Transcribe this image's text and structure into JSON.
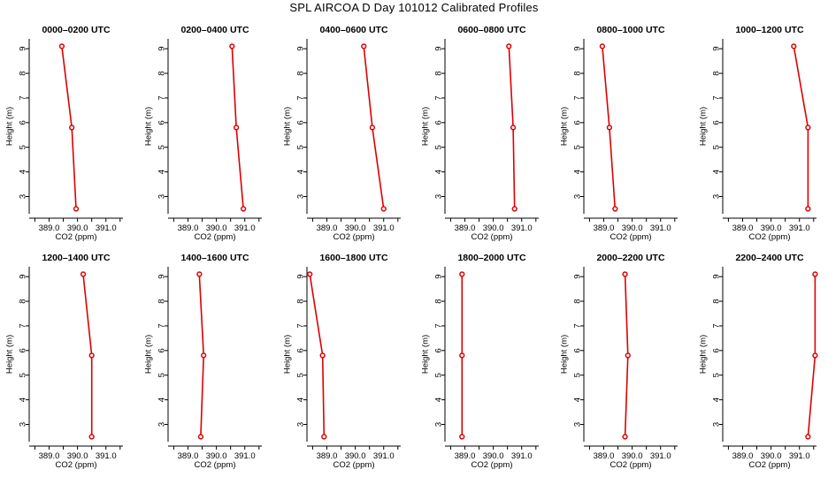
{
  "figure": {
    "title": "SPL AIRCOA D  Day 101012  Calibrated Profiles"
  },
  "style": {
    "line_color": "#dd0000",
    "axis_color": "#000000"
  },
  "chart_data": [
    {
      "type": "line",
      "title": "0000–0200 UTC",
      "xlabel": "CO2 (ppm)",
      "ylabel": "Height (m)",
      "xlim": [
        388.3,
        391.6
      ],
      "ylim": [
        2.3,
        9.4
      ],
      "xticks": [
        "389.0",
        "390.0",
        "391.0"
      ],
      "yticks": [
        "3",
        "4",
        "5",
        "6",
        "7",
        "8",
        "9"
      ],
      "series": [
        {
          "x": [
            389.45,
            389.8,
            389.95
          ],
          "y": [
            9.1,
            5.8,
            2.5
          ]
        }
      ]
    },
    {
      "type": "line",
      "title": "0200–0400 UTC",
      "xlabel": "CO2 (ppm)",
      "ylabel": "Height (m)",
      "xlim": [
        388.3,
        391.6
      ],
      "ylim": [
        2.3,
        9.4
      ],
      "xticks": [
        "389.0",
        "390.0",
        "391.0"
      ],
      "yticks": [
        "3",
        "4",
        "5",
        "6",
        "7",
        "8",
        "9"
      ],
      "series": [
        {
          "x": [
            390.55,
            390.7,
            390.95
          ],
          "y": [
            9.1,
            5.8,
            2.5
          ]
        }
      ]
    },
    {
      "type": "line",
      "title": "0400–0600 UTC",
      "xlabel": "CO2 (ppm)",
      "ylabel": "Height (m)",
      "xlim": [
        388.3,
        391.6
      ],
      "ylim": [
        2.3,
        9.4
      ],
      "xticks": [
        "389.0",
        "390.0",
        "391.0"
      ],
      "yticks": [
        "3",
        "4",
        "5",
        "6",
        "7",
        "8",
        "9"
      ],
      "series": [
        {
          "x": [
            390.3,
            390.6,
            391.0
          ],
          "y": [
            9.1,
            5.8,
            2.5
          ]
        }
      ]
    },
    {
      "type": "line",
      "title": "0600–0800 UTC",
      "xlabel": "CO2 (ppm)",
      "ylabel": "Height (m)",
      "xlim": [
        388.3,
        391.6
      ],
      "ylim": [
        2.3,
        9.4
      ],
      "xticks": [
        "389.0",
        "390.0",
        "391.0"
      ],
      "yticks": [
        "3",
        "4",
        "5",
        "6",
        "7",
        "8",
        "9"
      ],
      "series": [
        {
          "x": [
            390.55,
            390.7,
            390.75
          ],
          "y": [
            9.1,
            5.8,
            2.5
          ]
        }
      ]
    },
    {
      "type": "line",
      "title": "0800–1000 UTC",
      "xlabel": "CO2 (ppm)",
      "ylabel": "Height (m)",
      "xlim": [
        388.3,
        391.6
      ],
      "ylim": [
        2.3,
        9.4
      ],
      "xticks": [
        "389.0",
        "390.0",
        "391.0"
      ],
      "yticks": [
        "3",
        "4",
        "5",
        "6",
        "7",
        "8",
        "9"
      ],
      "series": [
        {
          "x": [
            388.95,
            389.2,
            389.4
          ],
          "y": [
            9.1,
            5.8,
            2.5
          ]
        }
      ]
    },
    {
      "type": "line",
      "title": "1000–1200 UTC",
      "xlabel": "CO2 (ppm)",
      "ylabel": "Height (m)",
      "xlim": [
        388.3,
        391.6
      ],
      "ylim": [
        2.3,
        9.4
      ],
      "xticks": [
        "389.0",
        "390.0",
        "391.0"
      ],
      "yticks": [
        "3",
        "4",
        "5",
        "6",
        "7",
        "8",
        "9"
      ],
      "series": [
        {
          "x": [
            390.8,
            391.3,
            391.3
          ],
          "y": [
            9.1,
            5.8,
            2.5
          ]
        }
      ]
    },
    {
      "type": "line",
      "title": "1200–1400 UTC",
      "xlabel": "CO2 (ppm)",
      "ylabel": "Height (m)",
      "xlim": [
        388.3,
        391.6
      ],
      "ylim": [
        2.3,
        9.4
      ],
      "xticks": [
        "389.0",
        "390.0",
        "391.0"
      ],
      "yticks": [
        "3",
        "4",
        "5",
        "6",
        "7",
        "8",
        "9"
      ],
      "series": [
        {
          "x": [
            390.2,
            390.5,
            390.5
          ],
          "y": [
            9.1,
            5.8,
            2.5
          ]
        }
      ]
    },
    {
      "type": "line",
      "title": "1400–1600 UTC",
      "xlabel": "CO2 (ppm)",
      "ylabel": "Height (m)",
      "xlim": [
        388.3,
        391.6
      ],
      "ylim": [
        2.3,
        9.4
      ],
      "xticks": [
        "389.0",
        "390.0",
        "391.0"
      ],
      "yticks": [
        "3",
        "4",
        "5",
        "6",
        "7",
        "8",
        "9"
      ],
      "series": [
        {
          "x": [
            389.4,
            389.55,
            389.45
          ],
          "y": [
            9.1,
            5.8,
            2.5
          ]
        }
      ]
    },
    {
      "type": "line",
      "title": "1600–1800 UTC",
      "xlabel": "CO2 (ppm)",
      "ylabel": "Height (m)",
      "xlim": [
        388.3,
        391.6
      ],
      "ylim": [
        2.3,
        9.4
      ],
      "xticks": [
        "389.0",
        "390.0",
        "391.0"
      ],
      "yticks": [
        "3",
        "4",
        "5",
        "6",
        "7",
        "8",
        "9"
      ],
      "series": [
        {
          "x": [
            388.4,
            388.85,
            388.9
          ],
          "y": [
            9.1,
            5.8,
            2.5
          ]
        }
      ]
    },
    {
      "type": "line",
      "title": "1800–2000 UTC",
      "xlabel": "CO2 (ppm)",
      "ylabel": "Height (m)",
      "xlim": [
        388.3,
        391.6
      ],
      "ylim": [
        2.3,
        9.4
      ],
      "xticks": [
        "389.0",
        "390.0",
        "391.0"
      ],
      "yticks": [
        "3",
        "4",
        "5",
        "6",
        "7",
        "8",
        "9"
      ],
      "series": [
        {
          "x": [
            388.9,
            388.9,
            388.9
          ],
          "y": [
            9.1,
            5.8,
            2.5
          ]
        }
      ]
    },
    {
      "type": "line",
      "title": "2000–2200 UTC",
      "xlabel": "CO2 (ppm)",
      "ylabel": "Height (m)",
      "xlim": [
        388.3,
        391.6
      ],
      "ylim": [
        2.3,
        9.4
      ],
      "xticks": [
        "389.0",
        "390.0",
        "391.0"
      ],
      "yticks": [
        "3",
        "4",
        "5",
        "6",
        "7",
        "8",
        "9"
      ],
      "series": [
        {
          "x": [
            389.75,
            389.85,
            389.75
          ],
          "y": [
            9.1,
            5.8,
            2.5
          ]
        }
      ]
    },
    {
      "type": "line",
      "title": "2200–2400 UTC",
      "xlabel": "CO2 (ppm)",
      "ylabel": "Height (m)",
      "xlim": [
        388.3,
        391.6
      ],
      "ylim": [
        2.3,
        9.4
      ],
      "xticks": [
        "389.0",
        "390.0",
        "391.0"
      ],
      "yticks": [
        "3",
        "4",
        "5",
        "6",
        "7",
        "8",
        "9"
      ],
      "series": [
        {
          "x": [
            391.55,
            391.55,
            391.3
          ],
          "y": [
            9.1,
            5.8,
            2.5
          ]
        }
      ]
    }
  ]
}
